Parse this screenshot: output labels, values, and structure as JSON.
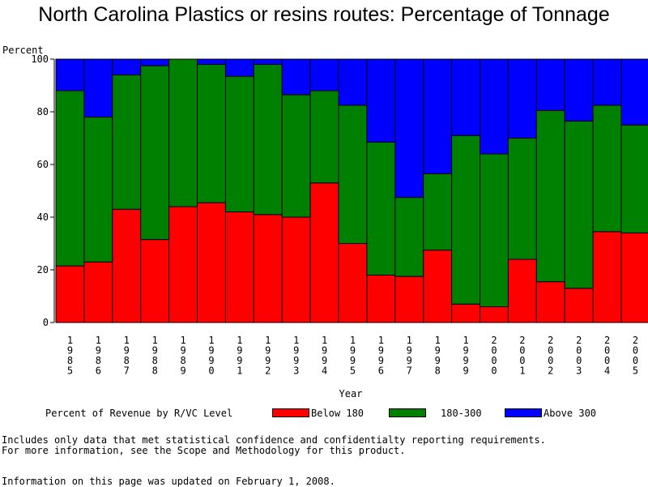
{
  "title": "North Carolina Plastics or resins routes: Percentage of Tonnage",
  "footnotes": {
    "line1": "Includes only data that met statistical confidence and confidentialty reporting requirements.",
    "line2": "For more information, see the Scope and Methodology for this product.",
    "updated": "Information on this page was updated on February 1, 2008."
  },
  "colors": {
    "below_180": "#ff0000",
    "range_180_300": "#008000",
    "above_300": "#0000ff"
  },
  "chart_data": {
    "type": "bar",
    "stacked": true,
    "ylabel": "Percent",
    "xlabel": "Year",
    "ylim": [
      0,
      100
    ],
    "yticks": [
      0,
      20,
      40,
      60,
      80,
      100
    ],
    "legend_title": "Percent of Revenue by R/VC Level",
    "categories": [
      "1985",
      "1986",
      "1987",
      "1988",
      "1989",
      "1990",
      "1991",
      "1992",
      "1993",
      "1994",
      "1995",
      "1996",
      "1997",
      "1998",
      "1999",
      "2000",
      "2001",
      "2002",
      "2003",
      "2004",
      "2005"
    ],
    "series": [
      {
        "name": "Below 180",
        "values": [
          21.5,
          23,
          43,
          31.5,
          44,
          45.5,
          42,
          41,
          40,
          53,
          30,
          18,
          17.5,
          27.5,
          7,
          6,
          24,
          15.5,
          13,
          34.5,
          34
        ]
      },
      {
        "name": "180-300",
        "values": [
          66.5,
          55,
          51,
          66,
          56,
          52.5,
          51.5,
          57,
          46.5,
          35,
          52.5,
          50.5,
          30,
          29,
          64,
          58,
          46,
          65,
          63.5,
          48,
          41
        ]
      },
      {
        "name": "Above 300",
        "values": [
          12,
          22,
          6,
          2.5,
          0,
          2,
          6.5,
          2,
          13.5,
          12,
          17.5,
          31.5,
          52.5,
          43.5,
          29,
          36,
          30,
          19.5,
          23.5,
          17.5,
          25
        ]
      }
    ]
  }
}
